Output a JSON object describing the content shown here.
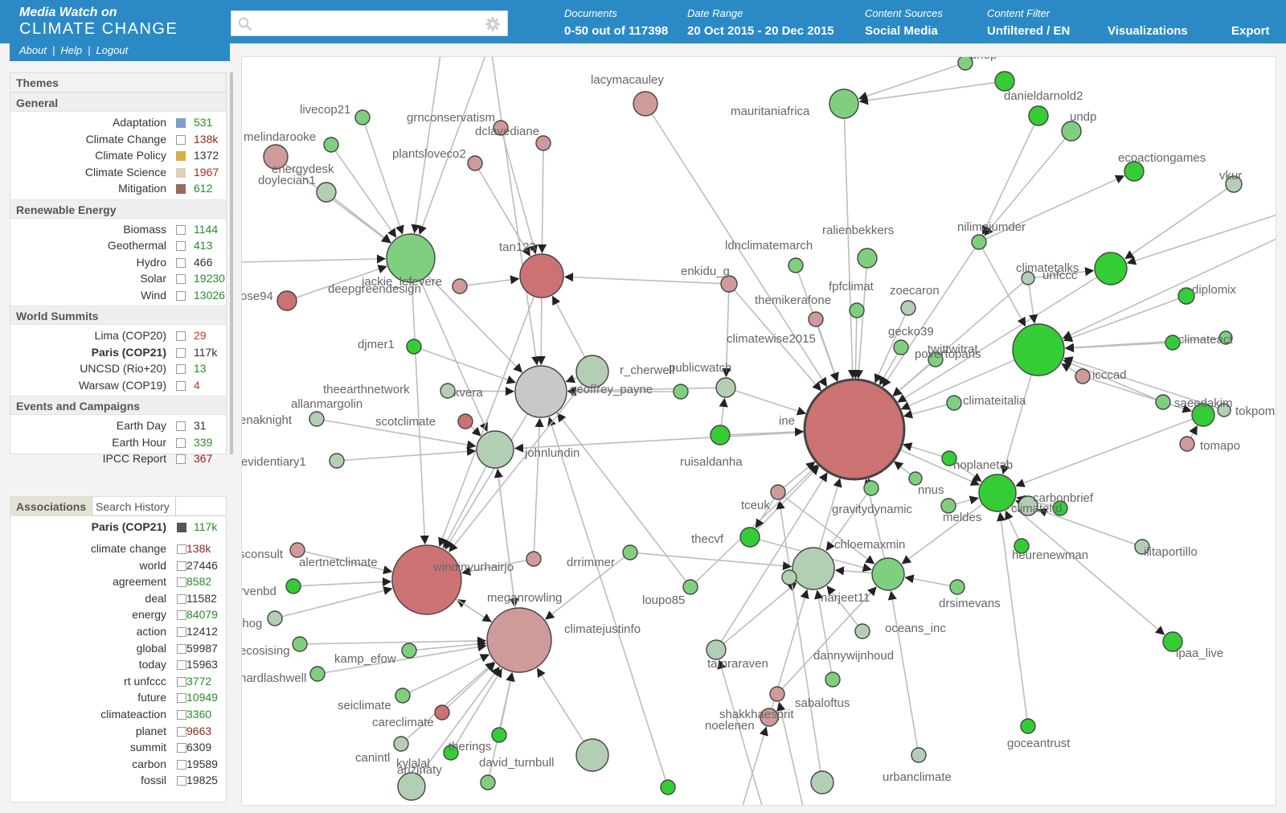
{
  "header": {
    "brand_line1": "Media Watch on",
    "brand_line2": "CLIMATE CHANGE",
    "links": [
      "About",
      "Help",
      "Logout"
    ],
    "search": {
      "value": "",
      "placeholder": ""
    },
    "items": [
      {
        "caption": "Documents",
        "value": "0-50 out of 117398"
      },
      {
        "caption": "Date Range",
        "value": "20 Oct 2015 - 20 Dec 2015"
      },
      {
        "caption": "Content Sources",
        "value": "Social Media"
      },
      {
        "caption": "Content Filter",
        "value": "Unfiltered / EN"
      }
    ],
    "buttons": [
      "Visualizations",
      "Export"
    ]
  },
  "themes": {
    "title": "Themes",
    "groups": [
      {
        "title": "General",
        "rows": [
          {
            "label": "Adaptation",
            "count": "531",
            "swatch": "#7c9fc9",
            "count_color": "#2a8a2a"
          },
          {
            "label": "Climate Change",
            "count": "138k",
            "swatch": "",
            "count_color": "#8a2a1a"
          },
          {
            "label": "Climate Policy",
            "count": "1372",
            "swatch": "#d2b04a",
            "count_color": "#333333"
          },
          {
            "label": "Climate Science",
            "count": "1967",
            "swatch": "#ddd0bd",
            "count_color": "#a02a2a"
          },
          {
            "label": "Mitigation",
            "count": "612",
            "swatch": "#9b6a58",
            "count_color": "#2a8a2a"
          }
        ]
      },
      {
        "title": "Renewable Energy",
        "rows": [
          {
            "label": "Biomass",
            "count": "1144",
            "swatch": "",
            "count_color": "#2a8a2a"
          },
          {
            "label": "Geothermal",
            "count": "413",
            "swatch": "",
            "count_color": "#2a8a2a"
          },
          {
            "label": "Hydro",
            "count": "466",
            "swatch": "",
            "count_color": "#333333"
          },
          {
            "label": "Solar",
            "count": "19230",
            "swatch": "",
            "count_color": "#2a8a2a"
          },
          {
            "label": "Wind",
            "count": "13026",
            "swatch": "",
            "count_color": "#2a8a2a"
          }
        ]
      },
      {
        "title": "World Summits",
        "rows": [
          {
            "label": "Lima (COP20)",
            "count": "29",
            "swatch": "",
            "count_color": "#c0392b"
          },
          {
            "label": "Paris (COP21)",
            "count": "117k",
            "swatch": "",
            "count_color": "#333333",
            "bold": true
          },
          {
            "label": "UNCSD (Rio+20)",
            "count": "13",
            "swatch": "",
            "count_color": "#2a8a2a"
          },
          {
            "label": "Warsaw (COP19)",
            "count": "4",
            "swatch": "",
            "count_color": "#c0392b"
          }
        ]
      },
      {
        "title": "Events and Campaigns",
        "rows": [
          {
            "label": "Earth Day",
            "count": "31",
            "swatch": "",
            "count_color": "#333333"
          },
          {
            "label": "Earth Hour",
            "count": "339",
            "swatch": "",
            "count_color": "#2a8a2a"
          },
          {
            "label": "IPCC Report",
            "count": "367",
            "swatch": "",
            "count_color": "#8a2a1a"
          }
        ]
      }
    ]
  },
  "associations": {
    "tabs": [
      "Associations",
      "Search History"
    ],
    "head": {
      "label": "Paris (COP21)",
      "count": "117k",
      "swatch": "#555555",
      "count_color": "#2a8a2a"
    },
    "rows": [
      {
        "label": "climate change",
        "count": "138k",
        "count_color": "#8a2a1a"
      },
      {
        "label": "world",
        "count": "27446",
        "count_color": "#333333"
      },
      {
        "label": "agreement",
        "count": "8582",
        "count_color": "#2a8a2a"
      },
      {
        "label": "deal",
        "count": "11582",
        "count_color": "#333333"
      },
      {
        "label": "energy",
        "count": "84079",
        "count_color": "#2a8a2a"
      },
      {
        "label": "action",
        "count": "12412",
        "count_color": "#333333"
      },
      {
        "label": "global",
        "count": "59987",
        "count_color": "#333333"
      },
      {
        "label": "today",
        "count": "15963",
        "count_color": "#333333"
      },
      {
        "label": "rt unfccc",
        "count": "3772",
        "count_color": "#2a8a2a"
      },
      {
        "label": "future",
        "count": "10949",
        "count_color": "#2a8a2a"
      },
      {
        "label": "climateaction",
        "count": "3360",
        "count_color": "#2a8a2a"
      },
      {
        "label": "planet",
        "count": "9663",
        "count_color": "#8a2a1a"
      },
      {
        "label": "summit",
        "count": "6309",
        "count_color": "#333333"
      },
      {
        "label": "carbon",
        "count": "19589",
        "count_color": "#333333"
      },
      {
        "label": "fossil",
        "count": "19825",
        "count_color": "#333333"
      }
    ]
  },
  "graph": {
    "labels": [
      "lacymacauley",
      "livecop21",
      "grnconservatism",
      "dclavediane",
      "melindarooke",
      "plantsloveco2",
      "energydesk",
      "doylecian1",
      "tan123",
      "jackie_lefevere",
      "deepgreendesign",
      "mauritaniafrica",
      "unep",
      "danieldarnold2",
      "undp",
      "ecoactiongames",
      "vkur",
      "nilimajumder",
      "ralienbekkers",
      "ldnclimatemarch",
      "enkidu_g",
      "climatetalks",
      "unfccc",
      "diplomix",
      "fpfclimat",
      "zoecaron",
      "themikerafone",
      "climatewise2015",
      "gecko39",
      "twittwitrat",
      "povertoparis",
      "climateact",
      "icccad",
      "climateitalia",
      "saeedakim",
      "tokpomp",
      "tomapo",
      "ose94",
      "djmer1",
      "r_cherwell",
      "publicwatch",
      "geoffrey_payne",
      "theearthnetwork",
      "kvera",
      "allanmargolin",
      "enaknight",
      "scotclimate",
      "ine",
      "evidentiary1",
      "johnlundin",
      "ruisaldanha",
      "noplanetab",
      "nnus",
      "carbonbrief",
      "climateltd",
      "tceuk",
      "gravitydynamic",
      "meldes",
      "thecvf",
      "chloemaxmin",
      "heurenewman",
      "ilitaportillo",
      "sconsult",
      "alertnetclimate",
      "windinyurhairjo",
      "drrimmer",
      "rvenbd",
      "narjeet11",
      "drsimevans",
      "meganrowling",
      "loupo85",
      "climatejustinfo",
      "lhog",
      "oceans_inc",
      "ecosising",
      "kamp_efow",
      "dannywijnhoud",
      "tamraraven",
      "ipaa_live",
      "hardlashwell",
      "sabaloftus",
      "seiclimate",
      "shakkhaesprit",
      "noelenen",
      "careclimate",
      "goceantrust",
      "therings",
      "canintl",
      "kylalal",
      "arizinaty",
      "david_turnbull",
      "urbanclimate"
    ],
    "colors": {
      "node_red": "#cd7272",
      "node_pink": "#cf9a9a",
      "node_lightgreen": "#b3cfb3",
      "node_green": "#7fcf7f",
      "node_bright": "#35cd35",
      "node_grey": "#c8c8c8",
      "edge": "#bdbdbd"
    }
  }
}
